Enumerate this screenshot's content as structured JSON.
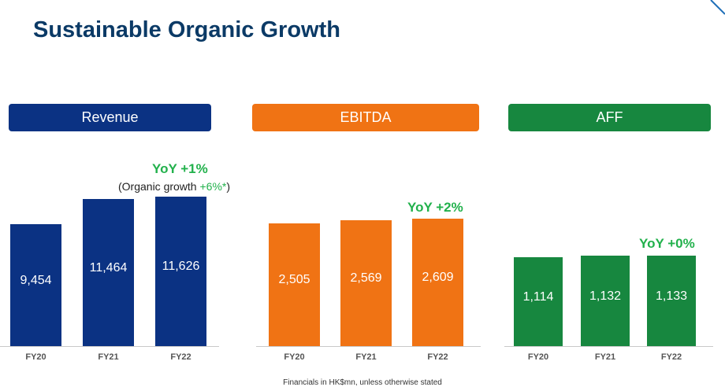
{
  "title": "Sustainable Organic Growth",
  "footnote": "Financials in HK$mn, unless otherwise stated",
  "organic_note": {
    "prefix": "(Organic growth ",
    "value": "+6%*",
    "suffix": ")"
  },
  "chart_data": [
    {
      "type": "bar",
      "title": "Revenue",
      "categories": [
        "FY20",
        "FY21",
        "FY22"
      ],
      "values": [
        9454,
        11464,
        11626
      ],
      "value_labels": [
        "9,454",
        "11,464",
        "11,626"
      ],
      "annotation": "YoY +1%",
      "color": "#0b3283",
      "ylim": [
        0,
        11626
      ]
    },
    {
      "type": "bar",
      "title": "EBITDA",
      "categories": [
        "FY20",
        "FY21",
        "FY22"
      ],
      "values": [
        2505,
        2569,
        2609
      ],
      "value_labels": [
        "2,505",
        "2,569",
        "2,609"
      ],
      "annotation": "YoY +2%",
      "color": "#f07314",
      "ylim": [
        0,
        2609
      ]
    },
    {
      "type": "bar",
      "title": "AFF",
      "categories": [
        "FY20",
        "FY21",
        "FY22"
      ],
      "values": [
        1114,
        1132,
        1133
      ],
      "value_labels": [
        "1,114",
        "1,132",
        "1,133"
      ],
      "annotation": "YoY +0%",
      "color": "#17873f",
      "ylim": [
        0,
        1133
      ]
    }
  ]
}
